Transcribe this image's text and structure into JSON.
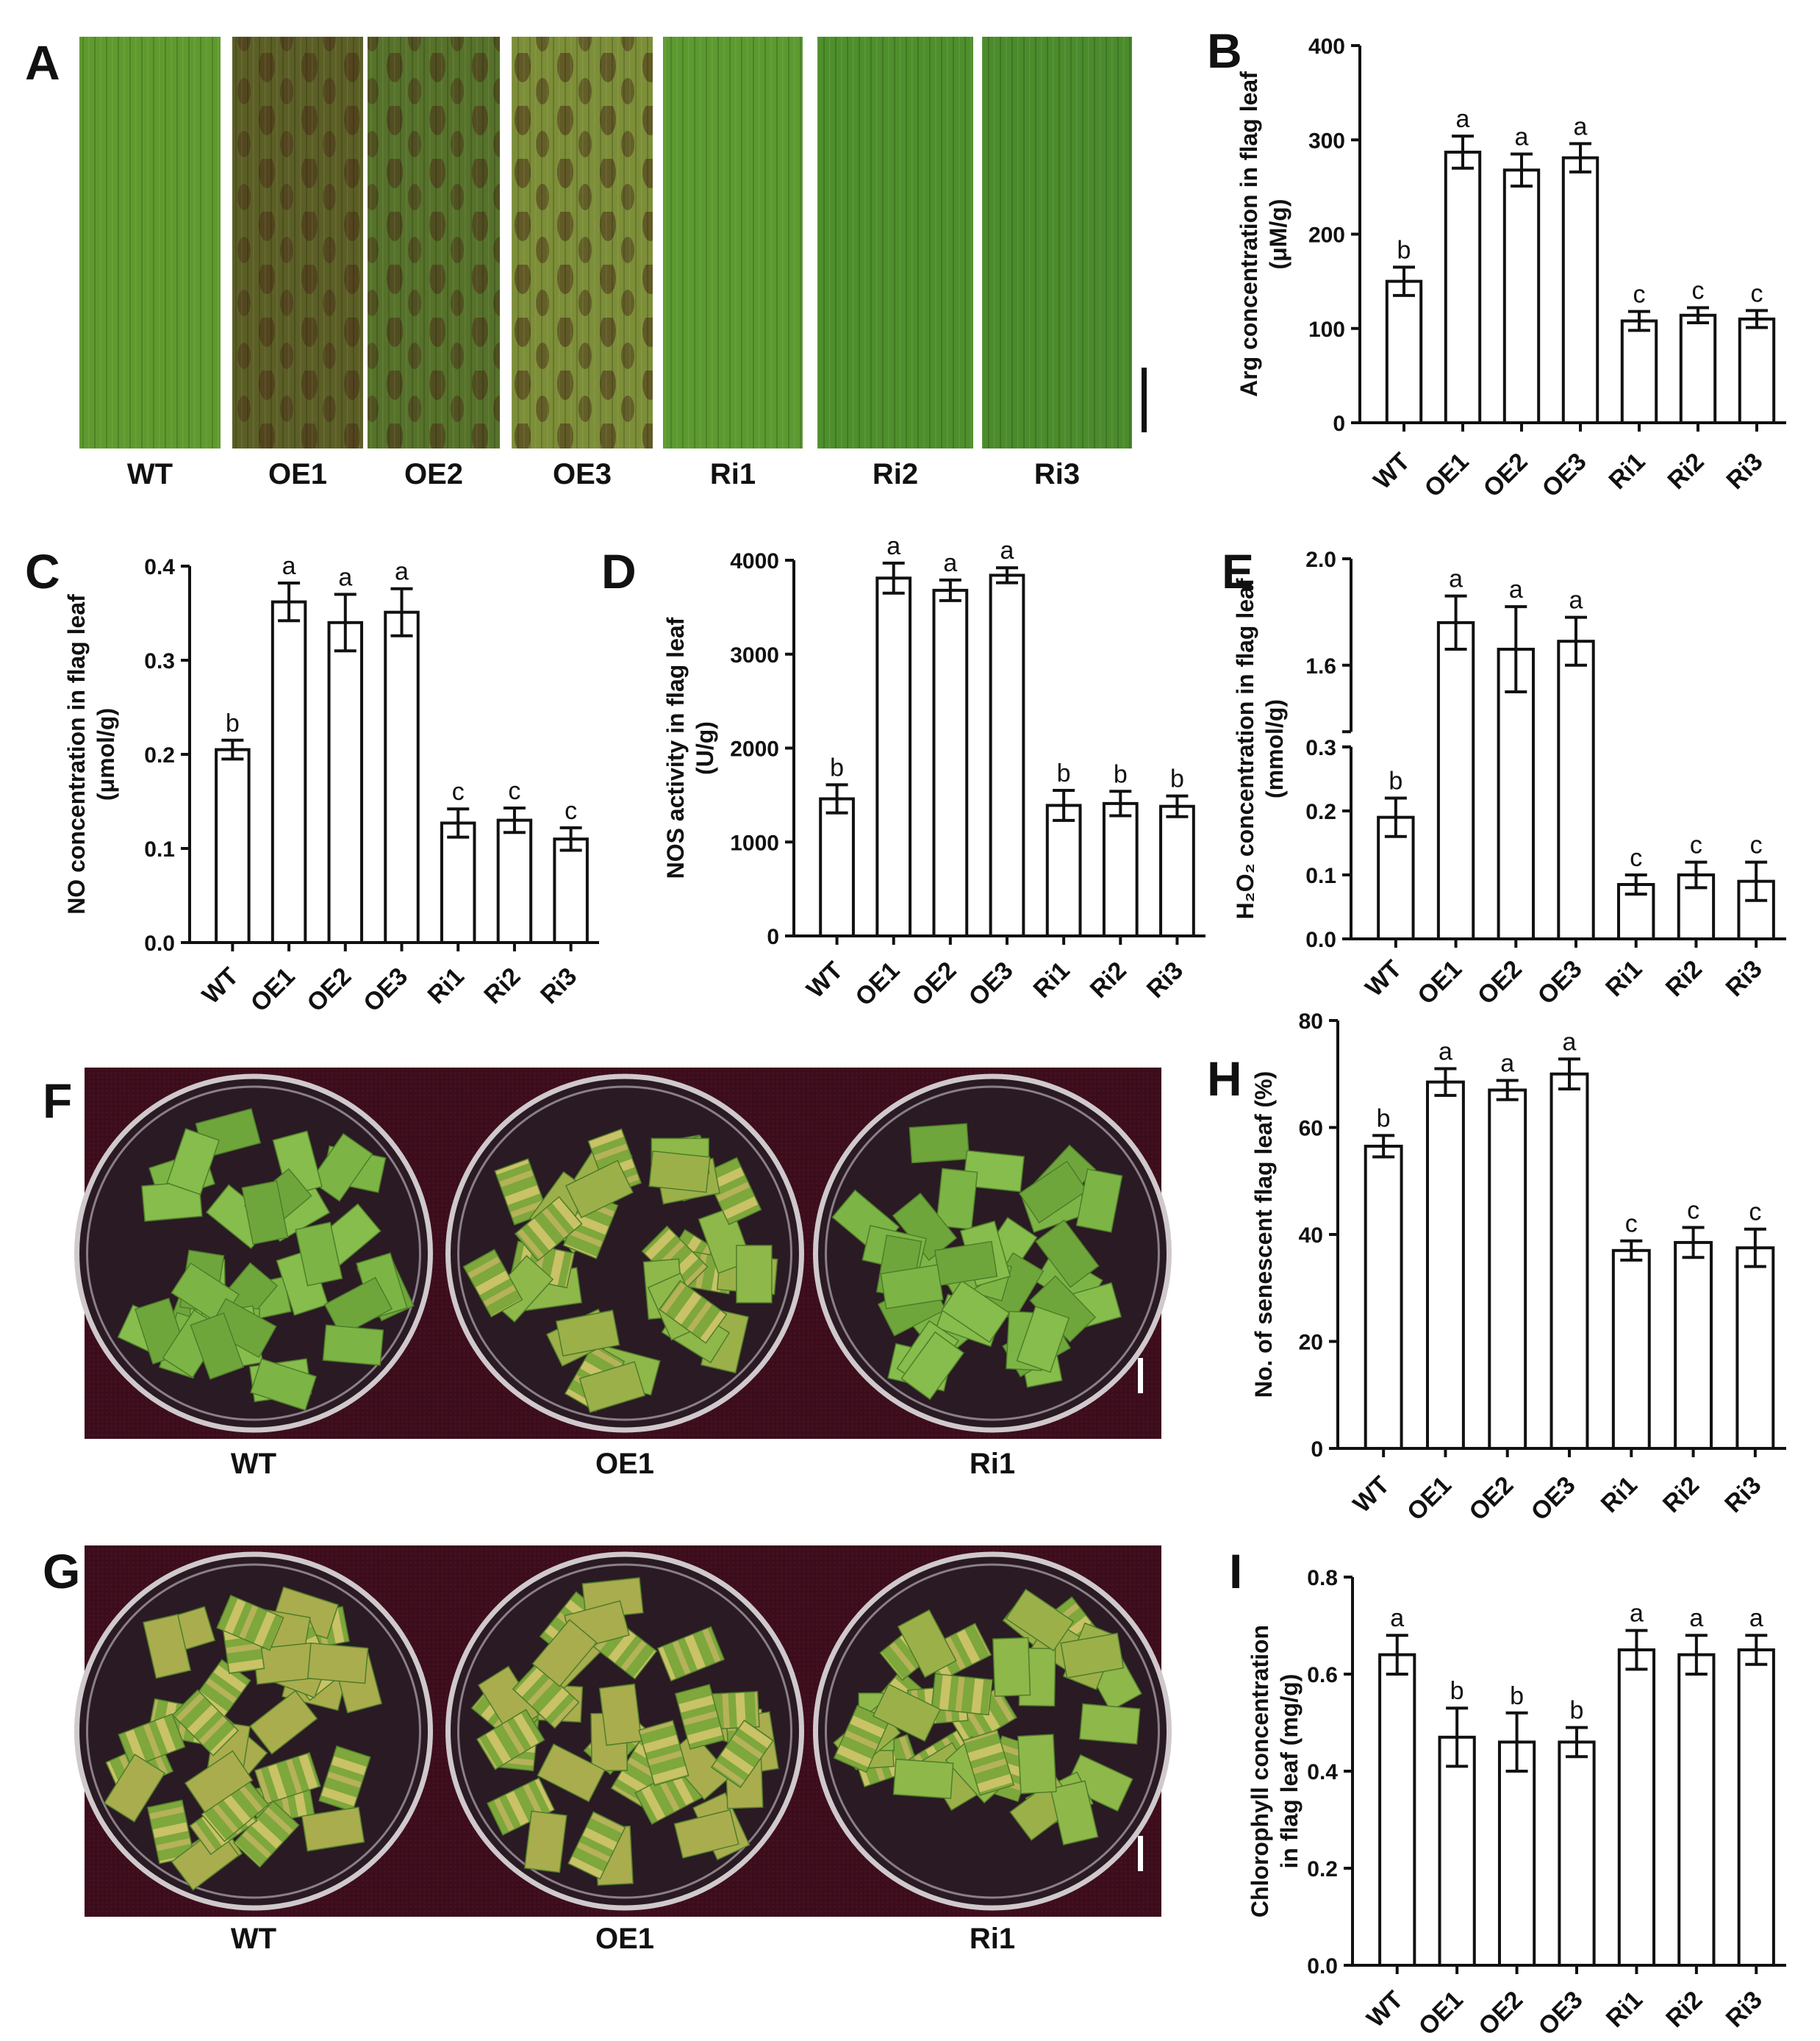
{
  "photo_panels": [
    {
      "id": "A",
      "labels": [
        "WT",
        "OE1",
        "OE2",
        "OE3",
        "Ri1",
        "Ri2",
        "Ri3"
      ],
      "colors": [
        "#5f9a2e",
        "#5b5f26",
        "#56722a",
        "#7c8e38",
        "#5c9a30",
        "#4e8f2c",
        "#4b8b2c"
      ]
    },
    {
      "id": "F",
      "labels": [
        "WT",
        "OE1",
        "Ri1"
      ]
    },
    {
      "id": "G",
      "labels": [
        "WT",
        "OE1",
        "Ri1"
      ]
    }
  ],
  "chart_data": [
    {
      "id": "B",
      "type": "bar",
      "categories": [
        "WT",
        "OE1",
        "OE2",
        "OE3",
        "Ri1",
        "Ri2",
        "Ri3"
      ],
      "values": [
        150,
        287,
        268,
        281,
        108,
        114,
        110
      ],
      "errors": [
        15,
        17,
        17,
        15,
        10,
        8,
        9
      ],
      "letters": [
        "b",
        "a",
        "a",
        "a",
        "c",
        "c",
        "c"
      ],
      "ylabel_lines": [
        "Arg concentration in flag leaf",
        "(μM/g)"
      ],
      "ylim": [
        0,
        400
      ],
      "yticks": [
        0,
        100,
        200,
        300,
        400
      ],
      "tick_labels": [
        "0",
        "100",
        "200",
        "300",
        "400"
      ]
    },
    {
      "id": "C",
      "type": "bar",
      "categories": [
        "WT",
        "OE1",
        "OE2",
        "OE3",
        "Ri1",
        "Ri2",
        "Ri3"
      ],
      "values": [
        0.205,
        0.362,
        0.34,
        0.351,
        0.127,
        0.13,
        0.11
      ],
      "errors": [
        0.01,
        0.02,
        0.03,
        0.025,
        0.015,
        0.013,
        0.012
      ],
      "letters": [
        "b",
        "a",
        "a",
        "a",
        "c",
        "c",
        "c"
      ],
      "ylabel_lines": [
        "NO concentration in flag leaf",
        "(μmol/g)"
      ],
      "ylim": [
        0,
        0.4
      ],
      "yticks": [
        0,
        0.1,
        0.2,
        0.3,
        0.4
      ],
      "tick_labels": [
        "0.0",
        "0.1",
        "0.2",
        "0.3",
        "0.4"
      ]
    },
    {
      "id": "D",
      "type": "bar",
      "categories": [
        "WT",
        "OE1",
        "OE2",
        "OE3",
        "Ri1",
        "Ri2",
        "Ri3"
      ],
      "values": [
        1460,
        3810,
        3680,
        3840,
        1390,
        1410,
        1380
      ],
      "errors": [
        150,
        160,
        110,
        80,
        160,
        130,
        110
      ],
      "letters": [
        "b",
        "a",
        "a",
        "a",
        "b",
        "b",
        "b"
      ],
      "ylabel_lines": [
        "NOS activity in flag leaf",
        "(U/g)"
      ],
      "ylim": [
        0,
        4000
      ],
      "yticks": [
        0,
        1000,
        2000,
        3000,
        4000
      ],
      "tick_labels": [
        "0",
        "1000",
        "2000",
        "3000",
        "4000"
      ]
    },
    {
      "id": "E",
      "type": "bar",
      "categories": [
        "WT",
        "OE1",
        "OE2",
        "OE3",
        "Ri1",
        "Ri2",
        "Ri3"
      ],
      "values": [
        0.19,
        1.76,
        1.66,
        1.69,
        0.085,
        0.1,
        0.09
      ],
      "errors": [
        0.03,
        0.1,
        0.16,
        0.09,
        0.015,
        0.02,
        0.03
      ],
      "letters": [
        "b",
        "a",
        "a",
        "a",
        "c",
        "c",
        "c"
      ],
      "ylabel_lines": [
        "H₂O₂ concentration in flag leaf",
        "(mmol/g)"
      ],
      "broken_axis": {
        "lower": [
          0,
          0.3
        ],
        "upper": [
          1.35,
          2.0
        ]
      },
      "lower_ticks": [
        0,
        0.1,
        0.2,
        0.3
      ],
      "lower_tick_labels": [
        "0.0",
        "0.1",
        "0.2",
        "0.3"
      ],
      "upper_ticks": [
        1.6,
        2.0
      ],
      "upper_tick_labels": [
        "1.6",
        "2.0"
      ]
    },
    {
      "id": "H",
      "type": "bar",
      "categories": [
        "WT",
        "OE1",
        "OE2",
        "OE3",
        "Ri1",
        "Ri2",
        "Ri3"
      ],
      "values": [
        56.5,
        68.5,
        67,
        70,
        37,
        38.5,
        37.5
      ],
      "errors": [
        2,
        2.5,
        1.8,
        2.8,
        1.8,
        2.8,
        3.5
      ],
      "letters": [
        "b",
        "a",
        "a",
        "a",
        "c",
        "c",
        "c"
      ],
      "ylabel_lines": [
        "No. of senescent flag leaf (%)"
      ],
      "ylim": [
        0,
        80
      ],
      "yticks": [
        0,
        20,
        40,
        60,
        80
      ],
      "tick_labels": [
        "0",
        "20",
        "40",
        "60",
        "80"
      ]
    },
    {
      "id": "I",
      "type": "bar",
      "categories": [
        "WT",
        "OE1",
        "OE2",
        "OE3",
        "Ri1",
        "Ri2",
        "Ri3"
      ],
      "values": [
        0.64,
        0.47,
        0.46,
        0.46,
        0.65,
        0.64,
        0.65
      ],
      "errors": [
        0.04,
        0.06,
        0.06,
        0.03,
        0.04,
        0.04,
        0.03
      ],
      "letters": [
        "a",
        "b",
        "b",
        "b",
        "a",
        "a",
        "a"
      ],
      "ylabel_lines": [
        "Chlorophyll concentration",
        "in flag leaf (mg/g)"
      ],
      "ylim": [
        0,
        0.8
      ],
      "yticks": [
        0,
        0.2,
        0.4,
        0.6,
        0.8
      ],
      "tick_labels": [
        "0.0",
        "0.2",
        "0.4",
        "0.6",
        "0.8"
      ]
    }
  ]
}
